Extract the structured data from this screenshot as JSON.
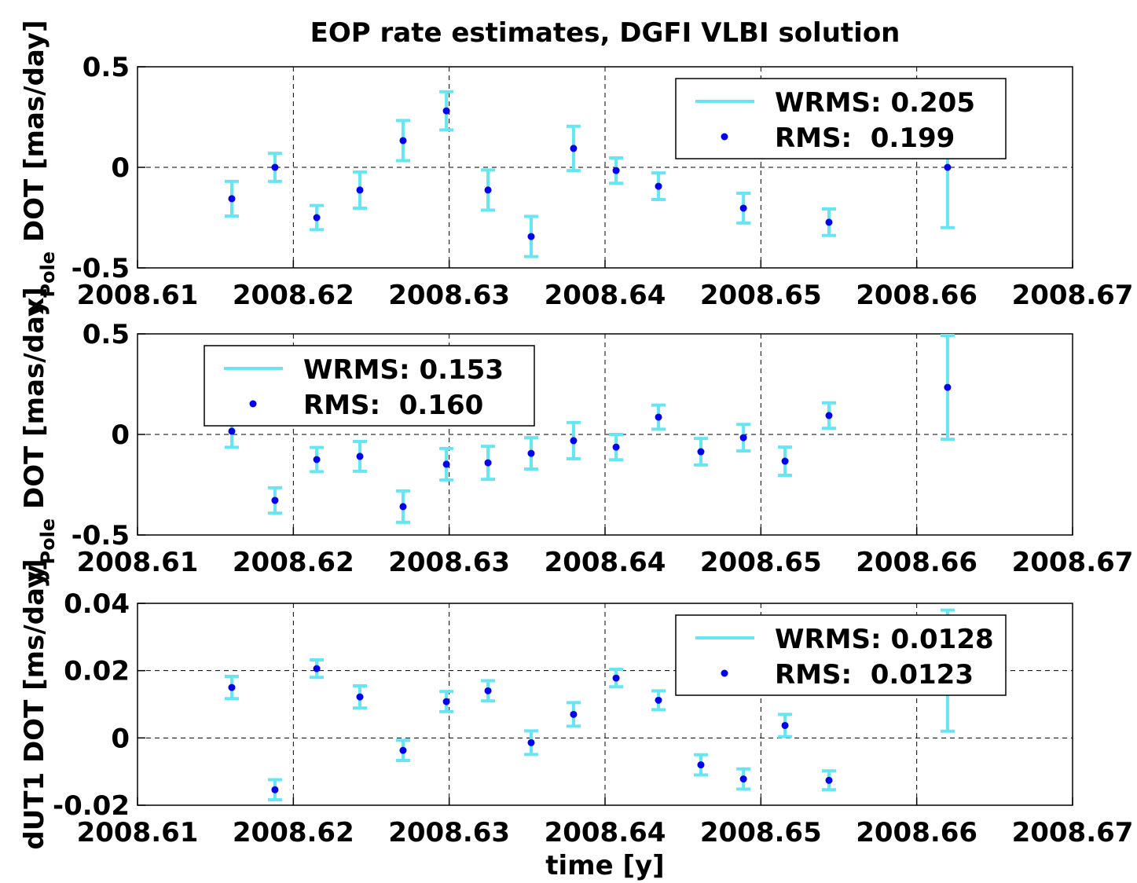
{
  "chart_data": [
    {
      "type": "errorbar",
      "title": "EOP rate estimates, DGFI VLBI solution",
      "ylabel": {
        "text": "x",
        "sub": "Pole",
        "suffix": " DOT [mas/day]"
      },
      "x": [
        2008.61605,
        2008.61882,
        2008.6215,
        2008.62427,
        2008.62704,
        2008.62982,
        2008.63249,
        2008.63526,
        2008.63798,
        2008.64071,
        2008.64343,
        2008.64888,
        2008.65437,
        2008.66198
      ],
      "series": [
        {
          "name": "WRMS: 0.205",
          "color": "#66e6f2",
          "errors": [
            0.086,
            0.07,
            0.06,
            0.09,
            0.1,
            0.095,
            0.1,
            0.1,
            0.11,
            0.063,
            0.066,
            0.074,
            0.066,
            0.3
          ]
        },
        {
          "name": "RMS:  0.199",
          "color": "#0000ee",
          "values": [
            -0.156,
            0,
            -0.25,
            -0.113,
            0.133,
            0.281,
            -0.113,
            -0.344,
            0.094,
            -0.016,
            -0.094,
            -0.203,
            -0.273,
            0
          ]
        }
      ],
      "xlim": [
        2008.61,
        2008.67
      ],
      "xticks": [
        2008.61,
        2008.62,
        2008.63,
        2008.64,
        2008.65,
        2008.66,
        2008.67
      ],
      "ylim": [
        -0.5,
        0.5
      ],
      "yticks": [
        -0.5,
        0,
        0.5
      ],
      "grid": true,
      "legend": "upper right"
    },
    {
      "type": "errorbar",
      "ylabel": {
        "text": "y",
        "sub": "Pole",
        "suffix": " DOT [mas/day]"
      },
      "x": [
        2008.61605,
        2008.61882,
        2008.6215,
        2008.62427,
        2008.62704,
        2008.62982,
        2008.63249,
        2008.63526,
        2008.63798,
        2008.64071,
        2008.64343,
        2008.64615,
        2008.64888,
        2008.65155,
        2008.65437,
        2008.66198
      ],
      "series": [
        {
          "name": "WRMS: 0.153",
          "color": "#66e6f2",
          "errors": [
            0.08,
            0.063,
            0.06,
            0.074,
            0.078,
            0.078,
            0.082,
            0.078,
            0.09,
            0.063,
            0.06,
            0.066,
            0.066,
            0.07,
            0.063,
            0.258
          ]
        },
        {
          "name": "RMS:  0.160",
          "color": "#0000ee",
          "values": [
            0.016,
            -0.328,
            -0.125,
            -0.109,
            -0.359,
            -0.148,
            -0.141,
            -0.094,
            -0.031,
            -0.063,
            0.086,
            -0.086,
            -0.016,
            -0.133,
            0.094,
            0.234
          ]
        }
      ],
      "xlim": [
        2008.61,
        2008.67
      ],
      "xticks": [
        2008.61,
        2008.62,
        2008.63,
        2008.64,
        2008.65,
        2008.66,
        2008.67
      ],
      "ylim": [
        -0.5,
        0.5
      ],
      "yticks": [
        -0.5,
        0,
        0.5
      ],
      "grid": true,
      "legend": "upper left"
    },
    {
      "type": "errorbar",
      "xlabel": "time [y]",
      "ylabel": {
        "text": "dUT1 DOT [ms/day]"
      },
      "x": [
        2008.61605,
        2008.61882,
        2008.6215,
        2008.62427,
        2008.62704,
        2008.62982,
        2008.63249,
        2008.63526,
        2008.63798,
        2008.64071,
        2008.64343,
        2008.64615,
        2008.64888,
        2008.65155,
        2008.65437,
        2008.66198
      ],
      "series": [
        {
          "name": "WRMS: 0.0128",
          "color": "#66e6f2",
          "errors": [
            0.0033,
            0.003,
            0.0026,
            0.0033,
            0.003,
            0.003,
            0.003,
            0.0035,
            0.0035,
            0.0026,
            0.0028,
            0.003,
            0.003,
            0.0033,
            0.0028,
            0.018
          ]
        },
        {
          "name": "RMS:  0.0123",
          "color": "#0000ee",
          "values": [
            0.015,
            -0.0154,
            0.0206,
            0.0122,
            -0.0037,
            0.0108,
            0.014,
            -0.0014,
            0.007,
            0.0178,
            0.0112,
            -0.008,
            -0.0122,
            0.0037,
            -0.0126,
            0.02
          ]
        }
      ],
      "xlim": [
        2008.61,
        2008.67
      ],
      "xticks": [
        2008.61,
        2008.62,
        2008.63,
        2008.64,
        2008.65,
        2008.66,
        2008.67
      ],
      "ylim": [
        -0.02,
        0.04
      ],
      "yticks": [
        -0.02,
        0,
        0.02,
        0.04
      ],
      "grid": true,
      "legend": "upper right"
    }
  ]
}
